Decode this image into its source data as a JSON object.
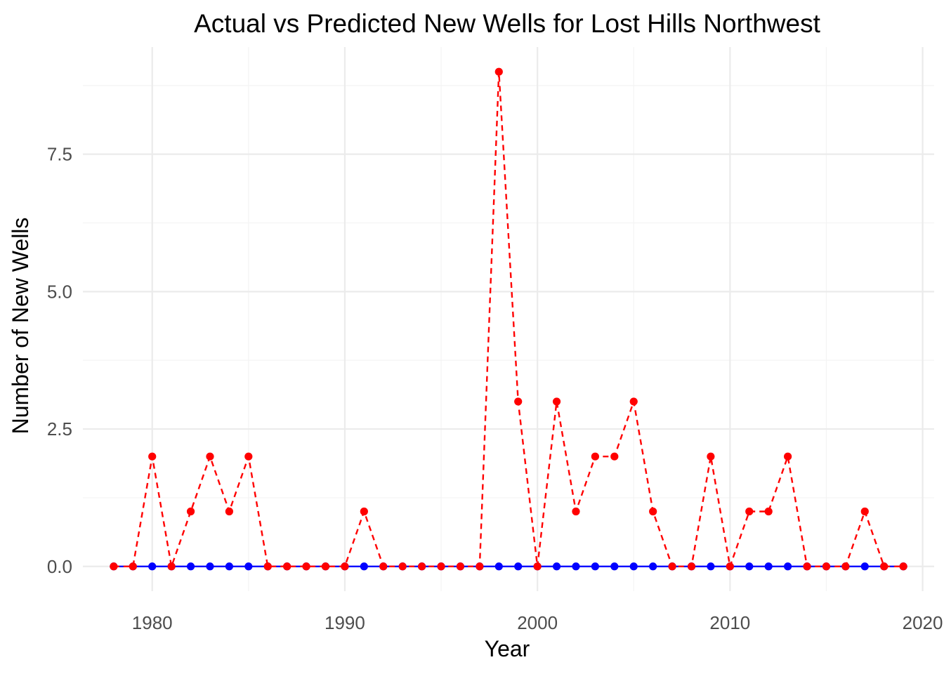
{
  "chart_data": {
    "type": "line",
    "title": "Actual vs Predicted New Wells for Lost Hills  Northwest",
    "xlabel": "Year",
    "ylabel": "Number of New Wells",
    "xlim": [
      1976.4,
      2020.6
    ],
    "ylim": [
      -0.45,
      9.45
    ],
    "x_ticks": [
      1980,
      1990,
      2000,
      2010,
      2020
    ],
    "x_tick_labels": [
      "1980",
      "1990",
      "2000",
      "2010",
      "2020"
    ],
    "y_ticks": [
      0,
      2.5,
      5,
      7.5
    ],
    "y_tick_labels": [
      "0.0",
      "2.5",
      "5.0",
      "7.5"
    ],
    "grid": true,
    "legend": "none",
    "x": [
      1978,
      1979,
      1980,
      1981,
      1982,
      1983,
      1984,
      1985,
      1986,
      1987,
      1988,
      1989,
      1990,
      1991,
      1992,
      1993,
      1994,
      1995,
      1996,
      1997,
      1998,
      1999,
      2000,
      2001,
      2002,
      2003,
      2004,
      2005,
      2006,
      2007,
      2008,
      2009,
      2010,
      2011,
      2012,
      2013,
      2014,
      2015,
      2016,
      2017,
      2018,
      2019
    ],
    "series": [
      {
        "color": "#0000ff",
        "line": "solid",
        "values": [
          0,
          0,
          0,
          0,
          0,
          0,
          0,
          0,
          0,
          0,
          0,
          0,
          0,
          0,
          0,
          0,
          0,
          0,
          0,
          0,
          0,
          0,
          0,
          0,
          0,
          0,
          0,
          0,
          0,
          0,
          0,
          0,
          0,
          0,
          0,
          0,
          0,
          0,
          0,
          0,
          0,
          0
        ]
      },
      {
        "color": "#ff0000",
        "line": "dashed",
        "values": [
          0,
          0,
          2,
          0,
          1,
          2,
          1,
          2,
          0,
          0,
          0,
          0,
          0,
          1,
          0,
          0,
          0,
          0,
          0,
          0,
          9,
          3,
          0,
          3,
          1,
          2,
          2,
          3,
          1,
          0,
          0,
          2,
          0,
          1,
          1,
          2,
          0,
          0,
          0,
          1,
          0,
          0
        ]
      }
    ]
  }
}
